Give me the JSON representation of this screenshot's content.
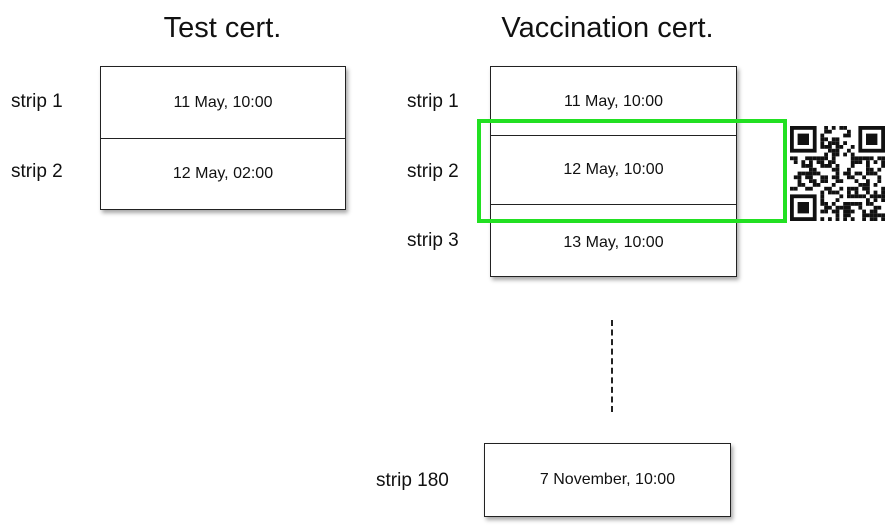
{
  "test_cert": {
    "title": "Test cert.",
    "strips": [
      {
        "label": "strip 1",
        "date": "11 May, 10:00"
      },
      {
        "label": "strip 2",
        "date": "12 May, 02:00"
      }
    ]
  },
  "vaccination_cert": {
    "title": "Vaccination cert.",
    "strips": [
      {
        "label": "strip 1",
        "date": "11 May, 10:00"
      },
      {
        "label": "strip 2",
        "date": "12 May, 10:00"
      },
      {
        "label": "strip 3",
        "date": "13 May, 10:00"
      }
    ],
    "last_strip": {
      "label": "strip 180",
      "date": "7 November, 10:00"
    }
  },
  "colors": {
    "highlight": "#22e022",
    "border": "#222222"
  },
  "icons": {
    "qr": "qr-code-icon"
  }
}
